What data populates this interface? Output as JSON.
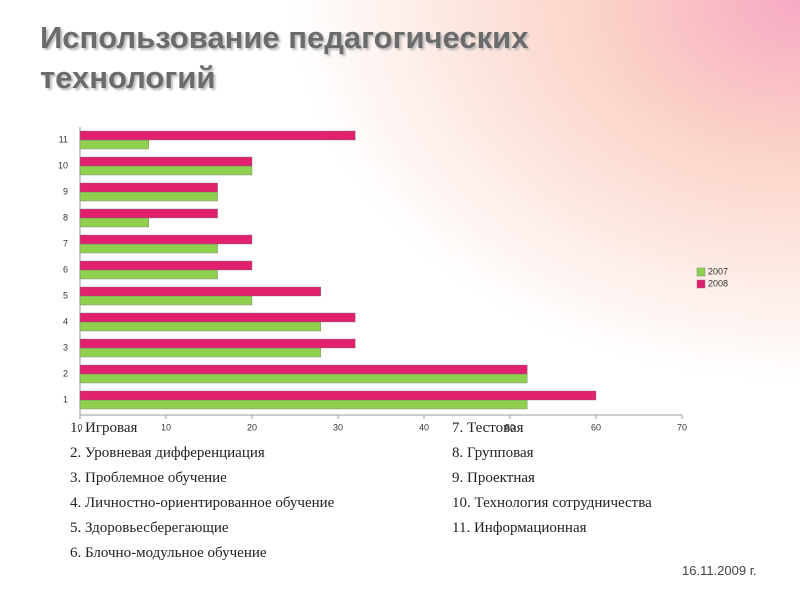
{
  "chart_data": {
    "type": "bar",
    "orientation": "horizontal",
    "title": "Использование педагогических технологий",
    "categories": [
      "1",
      "2",
      "3",
      "4",
      "5",
      "6",
      "7",
      "8",
      "9",
      "10",
      "11"
    ],
    "series": [
      {
        "name": "2007",
        "color": "#8fd14f",
        "values": [
          52,
          52,
          28,
          28,
          20,
          16,
          16,
          8,
          16,
          20,
          8
        ]
      },
      {
        "name": "2008",
        "color": "#e0216e",
        "values": [
          60,
          52,
          32,
          32,
          28,
          20,
          20,
          16,
          16,
          20,
          32
        ]
      }
    ],
    "xlim": [
      0,
      70
    ],
    "xticks": [
      0,
      10,
      20,
      30,
      40,
      50,
      60,
      70
    ],
    "grid": false,
    "legend": "right"
  },
  "notes": {
    "left": [
      "1. Игровая",
      "2. Уровневая дифференциация",
      "3. Проблемное обучение",
      "4. Личностно-ориентированное обучение",
      "5. Здоровьесберегающие",
      "6. Блочно-модульное обучение"
    ],
    "right": [
      "7. Тестовая",
      "8. Групповая",
      "9. Проектная",
      "10. Технология сотрудничества",
      "11. Информационная"
    ]
  },
  "footer": {
    "date": "16.11.2009 г."
  }
}
